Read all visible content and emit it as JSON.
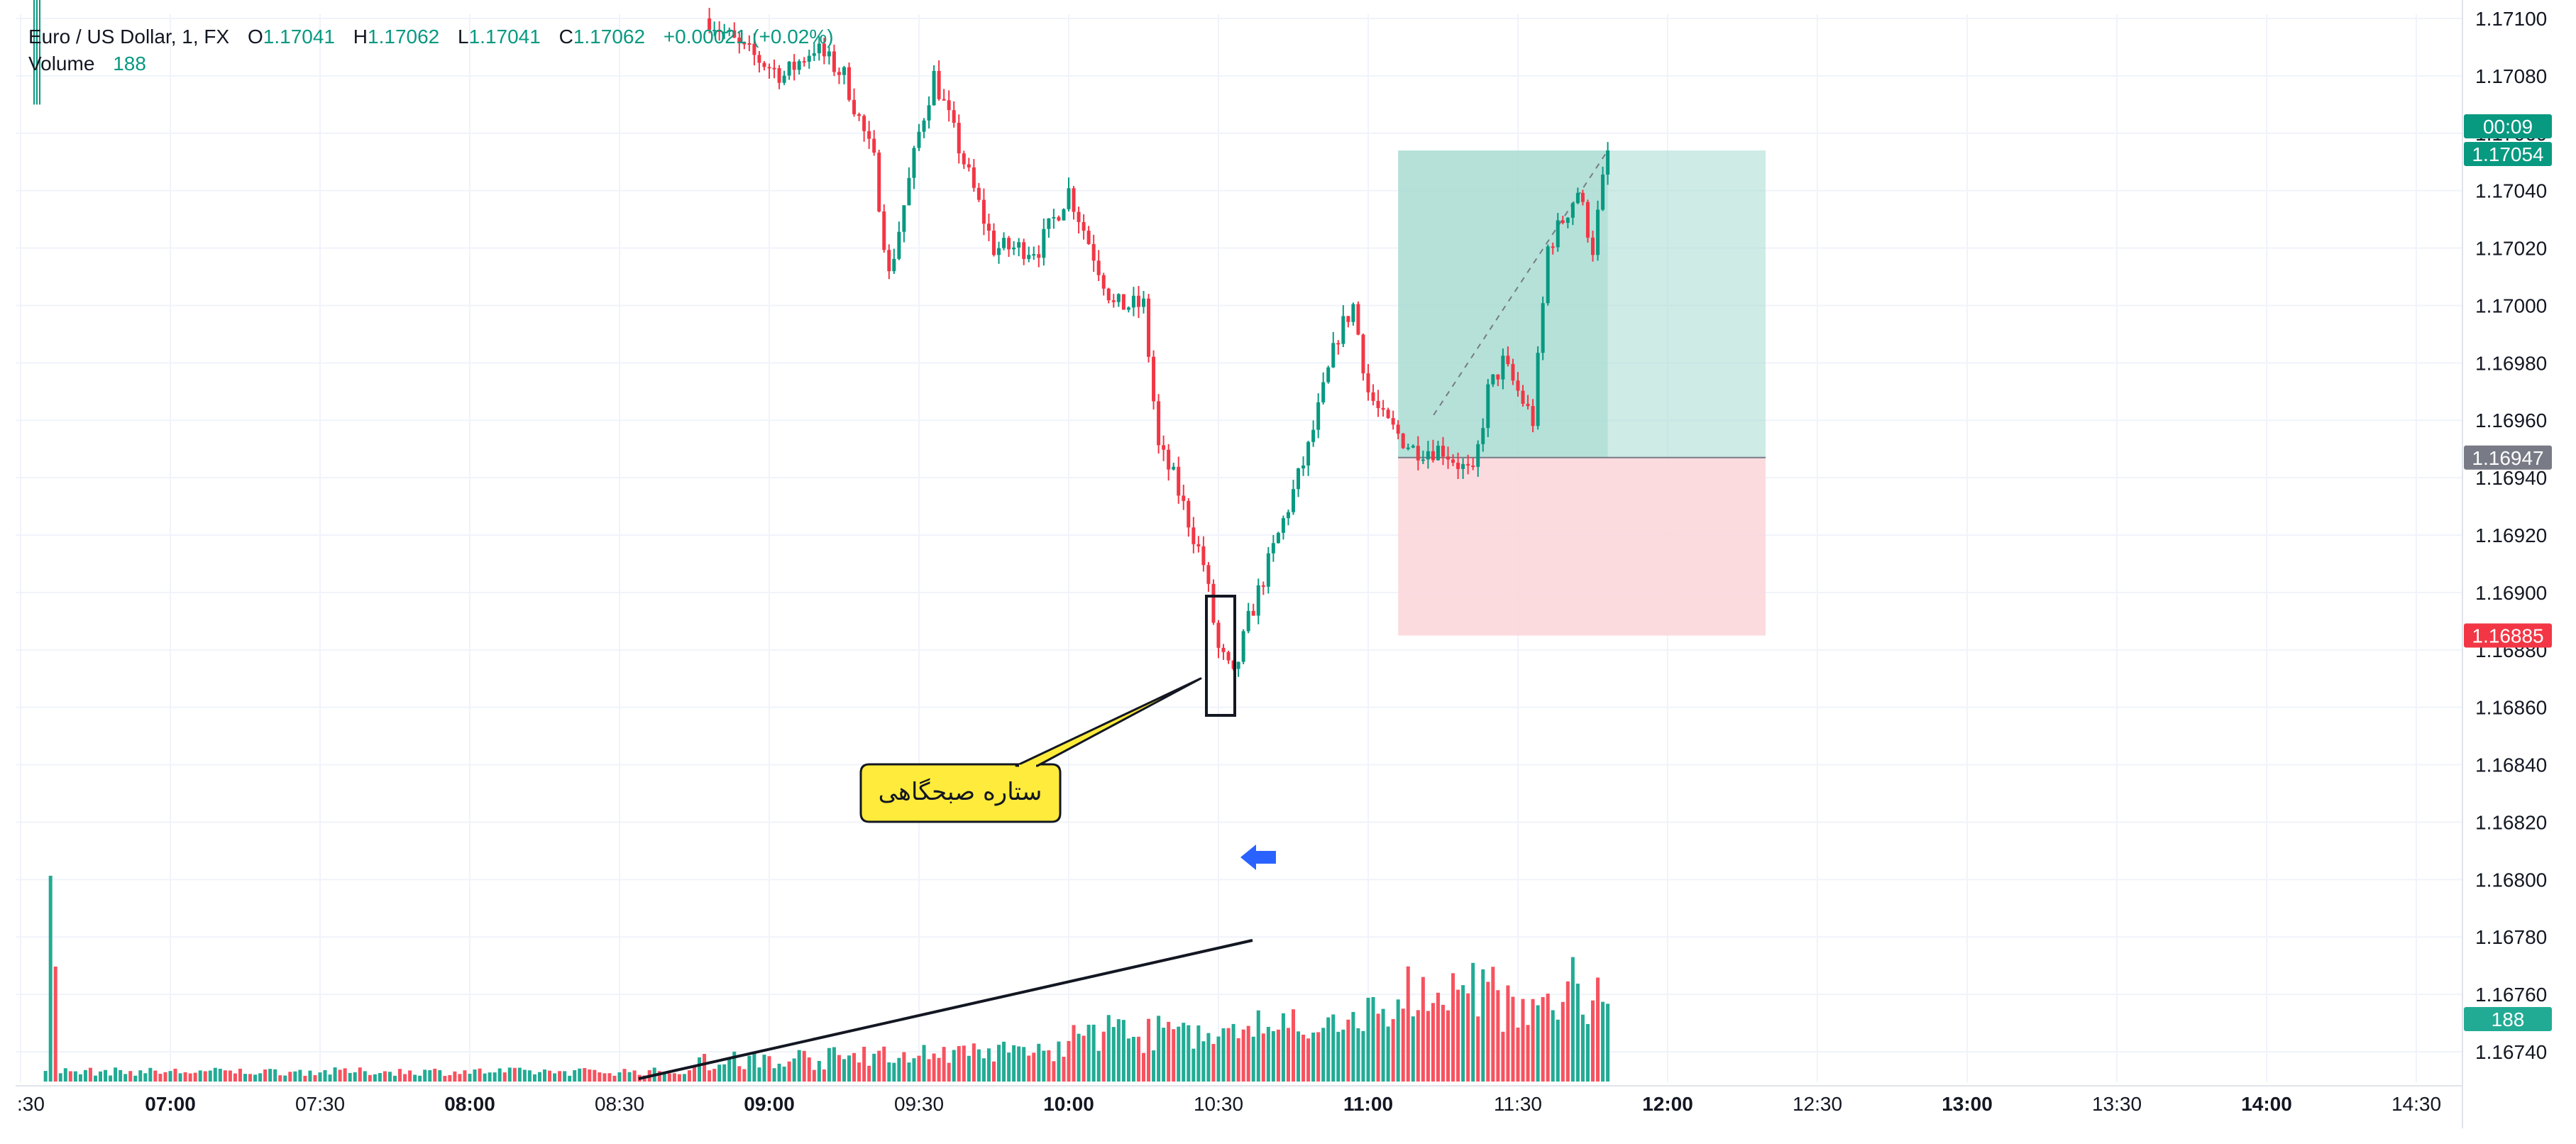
{
  "legend": {
    "symbol": "Euro / US Dollar, 1, FX",
    "o_label": "O",
    "o": "1.17041",
    "h_label": "H",
    "h": "1.17062",
    "l_label": "L",
    "l": "1.17041",
    "c_label": "C",
    "c": "1.17062",
    "change": "+0.00021 (+0.02%)",
    "volume_label": "Volume",
    "volume_value": "188"
  },
  "annotation": {
    "callout_text": "ستاره صبحگاهی"
  },
  "price_badges": {
    "countdown": "00:09",
    "last_price": "1.17054",
    "entry_price": "1.16947",
    "stop_price": "1.16885",
    "volume_badge": "188"
  },
  "colors": {
    "up": "#089981",
    "down": "#f23645",
    "up_volume": "#22ab94",
    "down_volume": "#f7525f",
    "profit_zone": "#a5dbd1",
    "loss_zone": "#fbd5d9",
    "callout": "#ffeb3b",
    "arrow": "#2962ff",
    "grid": "#f0f3fa"
  },
  "chart_data": {
    "type": "candlestick",
    "symbol": "EURUSD",
    "timeframe": "1m",
    "ylim": [
      1.1673,
      1.1711
    ],
    "y_ticks": [
      "1.17100",
      "1.17080",
      "1.17060",
      "1.17040",
      "1.17020",
      "1.17000",
      "1.16980",
      "1.16960",
      "1.16940",
      "1.16920",
      "1.16900",
      "1.16880",
      "1.16860",
      "1.16840",
      "1.16820",
      "1.16800",
      "1.16780",
      "1.16760",
      "1.16740"
    ],
    "x_ticks": [
      ":30",
      "07:00",
      "07:30",
      "08:00",
      "08:30",
      "09:00",
      "09:30",
      "10:00",
      "10:30",
      "11:00",
      "11:30",
      "12:00",
      "12:30",
      "13:00",
      "13:30",
      "14:00",
      "14:30"
    ],
    "bold_x_ticks": [
      "07:00",
      "08:00",
      "09:00",
      "10:00",
      "11:00",
      "12:00",
      "13:00",
      "14:00"
    ],
    "price_path": [
      [
        "08:48",
        1.171
      ],
      [
        "08:54",
        1.1709
      ],
      [
        "09:03",
        1.1708
      ],
      [
        "09:09",
        1.1709
      ],
      [
        "09:15",
        1.1708
      ],
      [
        "09:21",
        1.1705
      ],
      [
        "09:24",
        1.1701
      ],
      [
        "09:30",
        1.1706
      ],
      [
        "09:33",
        1.1708
      ],
      [
        "09:39",
        1.1705
      ],
      [
        "09:45",
        1.1702
      ],
      [
        "09:54",
        1.1702
      ],
      [
        "10:00",
        1.1704
      ],
      [
        "10:09",
        1.17
      ],
      [
        "10:15",
        1.17
      ],
      [
        "10:18",
        1.1695
      ],
      [
        "10:21",
        1.1694
      ],
      [
        "10:27",
        1.1691
      ],
      [
        "10:30",
        1.1688
      ],
      [
        "10:33",
        1.1687
      ],
      [
        "10:36",
        1.1689
      ],
      [
        "10:42",
        1.1692
      ],
      [
        "10:48",
        1.1695
      ],
      [
        "10:54",
        1.1699
      ],
      [
        "10:57",
        1.17
      ],
      [
        "11:00",
        1.1697
      ],
      [
        "11:03",
        1.1696
      ],
      [
        "11:09",
        1.1695
      ],
      [
        "11:15",
        1.1695
      ],
      [
        "11:21",
        1.1694
      ],
      [
        "11:24",
        1.1697
      ],
      [
        "11:27",
        1.1698
      ],
      [
        "11:33",
        1.1696
      ],
      [
        "11:36",
        1.1702
      ],
      [
        "11:42",
        1.1704
      ],
      [
        "11:45",
        1.1702
      ],
      [
        "11:48",
        1.17054
      ]
    ],
    "long_position": {
      "start": "11:06",
      "end": "11:48",
      "entry": 1.16947,
      "take_profit": 1.17054,
      "stop": 1.16885
    },
    "volume_trendline": {
      "start": "08:35",
      "end": "10:36"
    },
    "last_volume": 188
  }
}
